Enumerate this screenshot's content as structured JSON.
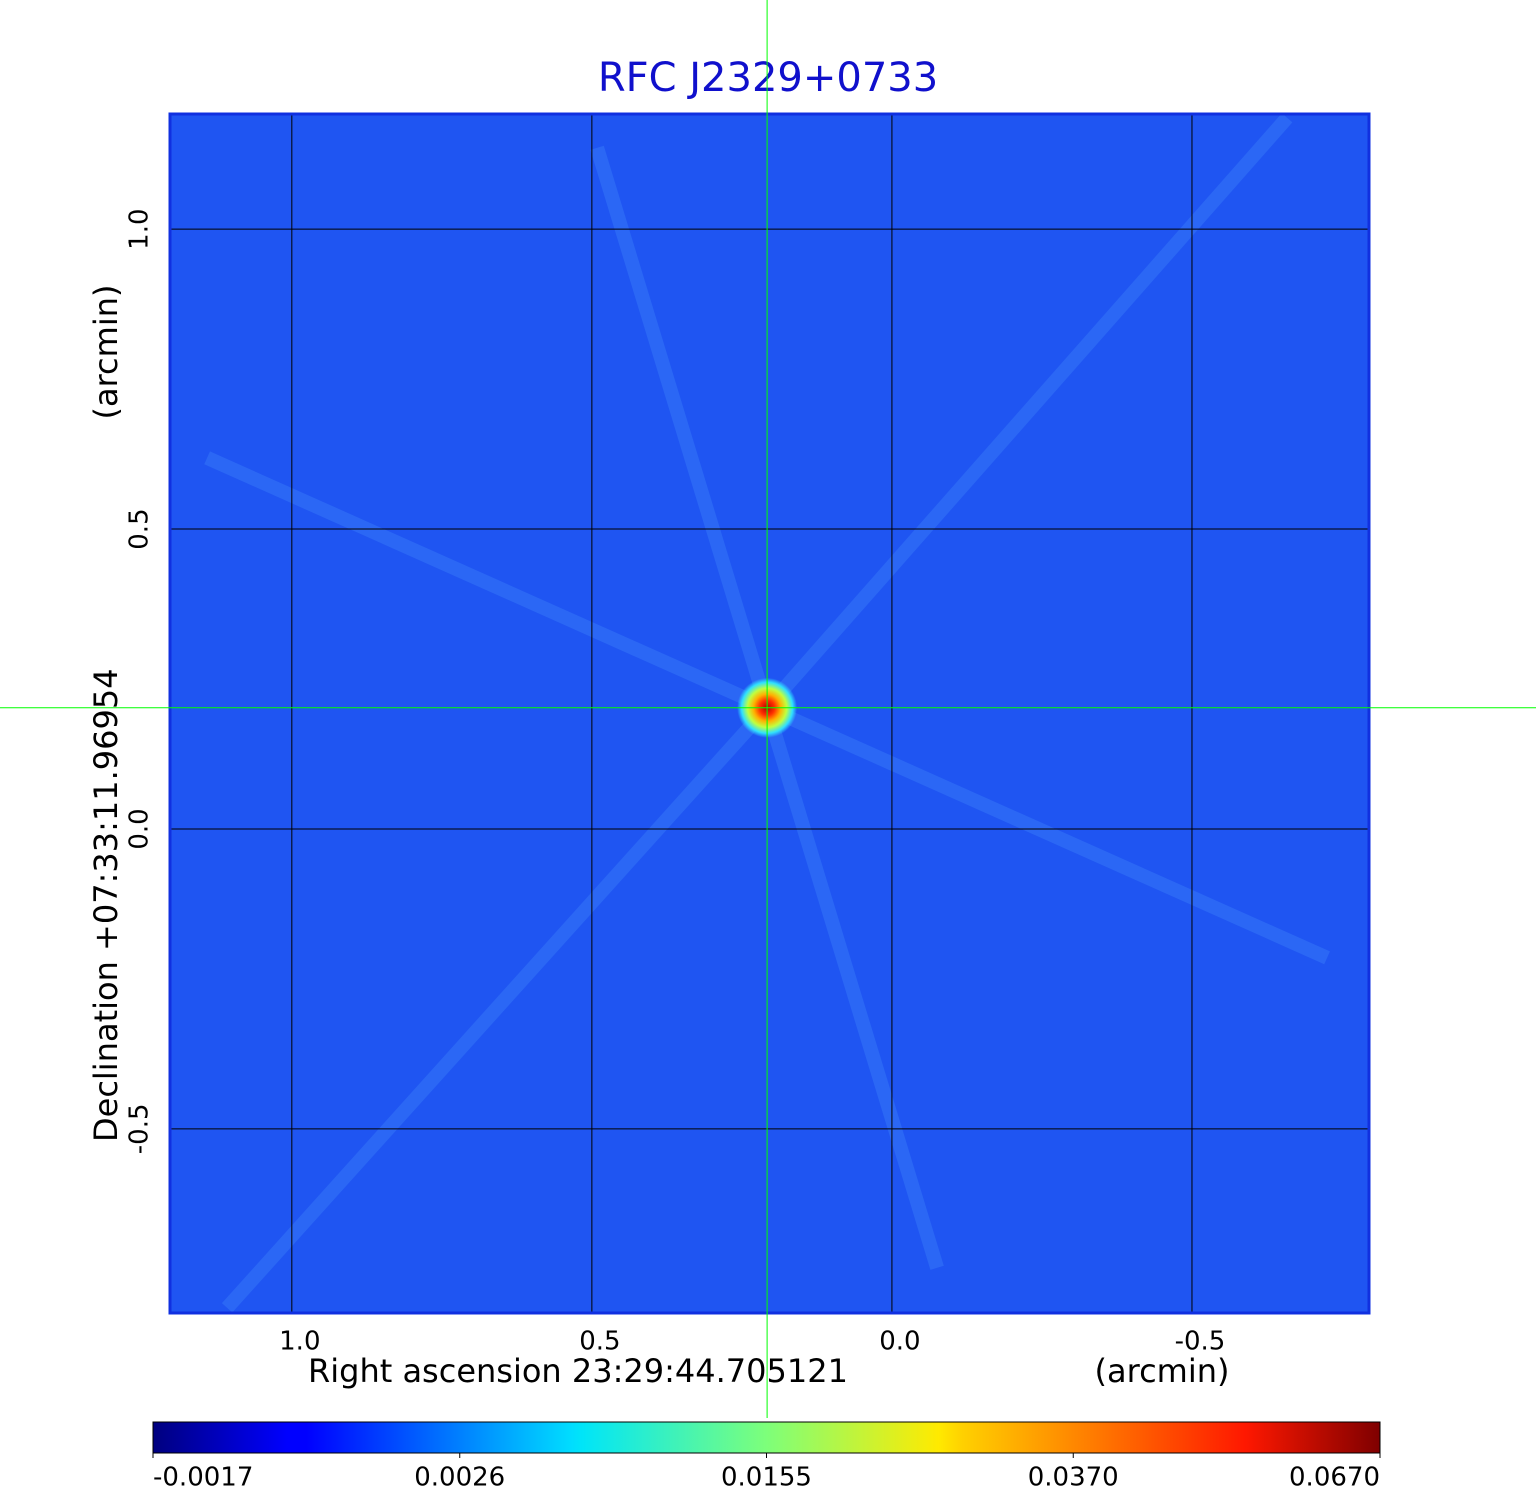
{
  "chart_data": {
    "type": "image",
    "title": "RFC J2329+0733",
    "xlabel": "Right ascension  23:29:44.705121",
    "xunit": "(arcmin)",
    "ylabel": "Declination  +07:33:11.96954",
    "yunit": "(arcmin)",
    "xlim": [
      1.203,
      -0.795
    ],
    "ylim": [
      -0.807,
      1.192
    ],
    "xticks": [
      {
        "value": 1,
        "label": "1.0"
      },
      0.5,
      {
        "value": 0,
        "label": "0.0"
      },
      -0.5
    ],
    "yticks": [
      {
        "value": 1,
        "label": "1.0"
      },
      0.5,
      {
        "value": 0,
        "label": "0.0"
      },
      -0.5
    ],
    "grid": true,
    "colormap": "jet",
    "background_color": "#1f55f2",
    "crosshair": {
      "x": 0.208,
      "y": 0.202,
      "color": "#00ff00"
    },
    "colorbar_ticks": [
      {
        "value": -0.0017,
        "label": "-0.0017"
      },
      0.0026,
      0.0155,
      {
        "value": 0.037,
        "label": "0.0370"
      },
      {
        "value": 0.067,
        "label": "0.0670"
      }
    ]
  }
}
